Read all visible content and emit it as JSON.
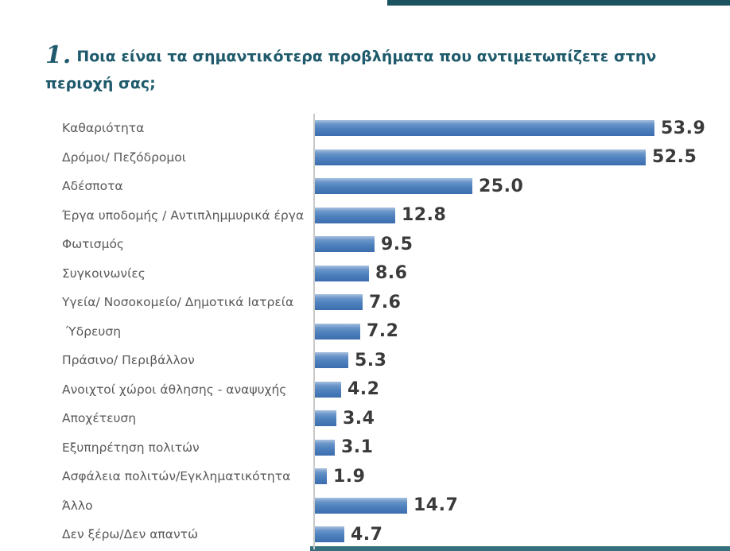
{
  "title": {
    "prefix": "1.",
    "question": "Ποια είναι τα σημαντικότερα προβλήματα που αντιμετωπίζετε στην περιοχή σας;"
  },
  "chart_data": {
    "type": "bar",
    "orientation": "horizontal",
    "title": "1. Ποια είναι τα σημαντικότερα προβλήματα που αντιμετωπίζετε στην περιοχή σας;",
    "categories": [
      "Καθαριότητα",
      "Δρόμοι/ Πεζόδρομοι",
      "Αδέσποτα",
      "Έργα υποδομής / Αντιπλημμυρικά έργα",
      "Φωτισμός",
      "Συγκοινωνίες",
      "Υγεία/ Νοσοκομείο/ Δημοτικά Ιατρεία",
      " Ύδρευση",
      "Πράσινο/ Περιβάλλον",
      "Ανοιχτοί χώροι άθλησης - αναψυχής",
      "Αποχέτευση",
      "Εξυπηρέτηση πολιτών",
      "Ασφάλεια πολιτών/Εγκληματικότητα",
      "Άλλο",
      "Δεν ξέρω/Δεν απαντώ"
    ],
    "values": [
      53.9,
      52.5,
      25.0,
      12.8,
      9.5,
      8.6,
      7.6,
      7.2,
      5.3,
      4.2,
      3.4,
      3.1,
      1.9,
      14.7,
      4.7
    ],
    "xlim": [
      0,
      55
    ],
    "value_label_decimals": 1,
    "grid": false,
    "legend": false,
    "bar_color": "#4e81bd",
    "bar_gradient_top": "#a9c1df",
    "bar_gradient_bottom": "#3c6dae",
    "category_label_color": "#595959",
    "value_label_color": "#3a3a3a",
    "axis_line_color": "#c9c9c9",
    "title_color": "#1f5b6c",
    "accent_strip_top_color": "#1c5360",
    "accent_strip_bottom_color": "#35707d"
  }
}
